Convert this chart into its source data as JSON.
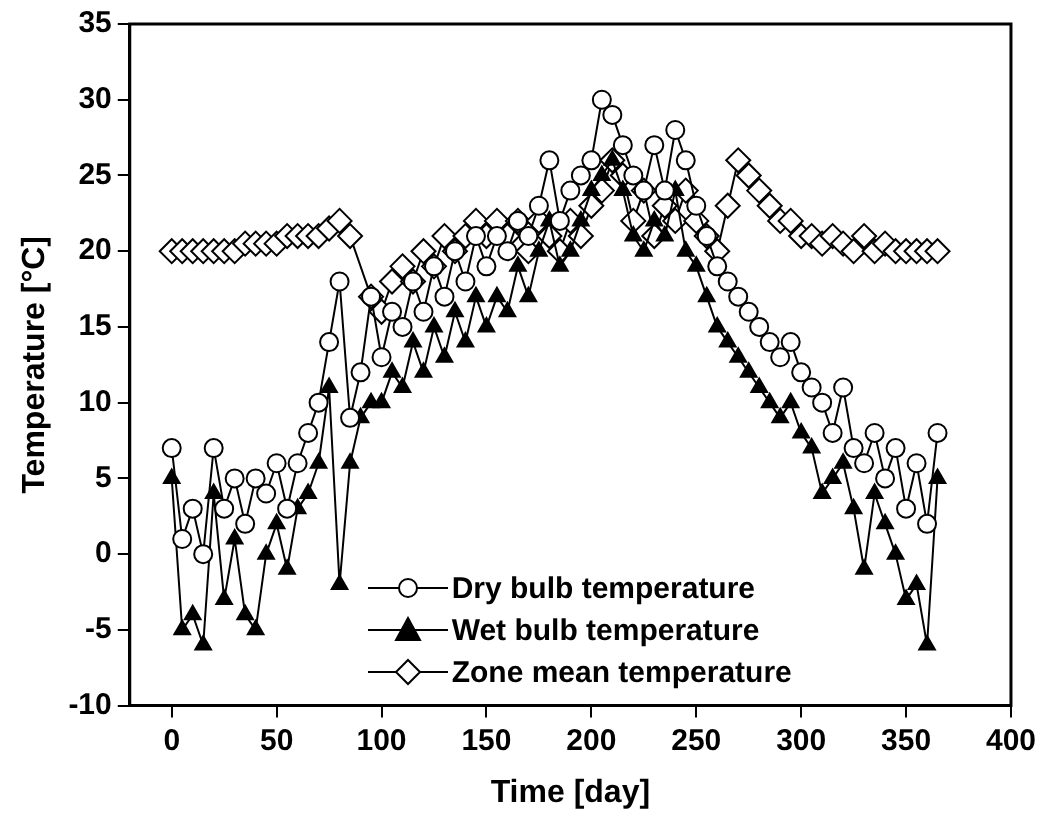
{
  "chart_data": {
    "type": "line",
    "xlabel": "Time [day]",
    "ylabel": "Temperature [°C]",
    "xlim": [
      -20,
      400
    ],
    "xticks": [
      0,
      50,
      100,
      150,
      200,
      250,
      300,
      350,
      400
    ],
    "ylim": [
      -10,
      35
    ],
    "yticks": [
      -10,
      -5,
      0,
      5,
      10,
      15,
      20,
      25,
      30,
      35
    ],
    "grid": false,
    "legend": "bottom",
    "line_style": "solid",
    "series": [
      {
        "name": "Dry bulb temperature",
        "color": "#000000",
        "marker": "circle",
        "x": [
          0,
          5,
          10,
          15,
          20,
          25,
          30,
          35,
          40,
          45,
          50,
          55,
          60,
          65,
          70,
          75,
          80,
          85,
          90,
          95,
          100,
          105,
          110,
          115,
          120,
          125,
          130,
          135,
          140,
          145,
          150,
          155,
          160,
          165,
          170,
          175,
          180,
          185,
          190,
          195,
          200,
          205,
          210,
          215,
          220,
          225,
          230,
          235,
          240,
          245,
          250,
          255,
          260,
          265,
          270,
          275,
          280,
          285,
          290,
          295,
          300,
          305,
          310,
          315,
          320,
          325,
          330,
          335,
          340,
          345,
          350,
          355,
          360,
          365
        ],
        "values": [
          7,
          1,
          3,
          0,
          7,
          3,
          5,
          2,
          5,
          4,
          6,
          3,
          6,
          8,
          10,
          14,
          18,
          9,
          12,
          17,
          13,
          16,
          15,
          18,
          16,
          19,
          17,
          20,
          18,
          21,
          19,
          21,
          20,
          22,
          21,
          23,
          26,
          22,
          24,
          25,
          26,
          30,
          29,
          27,
          25,
          24,
          27,
          24,
          28,
          26,
          23,
          21,
          19,
          18,
          17,
          16,
          15,
          14,
          13,
          14,
          12,
          11,
          10,
          8,
          11,
          7,
          6,
          8,
          5,
          7,
          3,
          6,
          2,
          8
        ]
      },
      {
        "name": "Wet bulb temperature",
        "color": "#000000",
        "marker": "triangle",
        "x": [
          0,
          5,
          10,
          15,
          20,
          25,
          30,
          35,
          40,
          45,
          50,
          55,
          60,
          65,
          70,
          75,
          80,
          85,
          90,
          95,
          100,
          105,
          110,
          115,
          120,
          125,
          130,
          135,
          140,
          145,
          150,
          155,
          160,
          165,
          170,
          175,
          180,
          185,
          190,
          195,
          200,
          205,
          210,
          215,
          220,
          225,
          230,
          235,
          240,
          245,
          250,
          255,
          260,
          265,
          270,
          275,
          280,
          285,
          290,
          295,
          300,
          305,
          310,
          315,
          320,
          325,
          330,
          335,
          340,
          345,
          350,
          355,
          360,
          365
        ],
        "values": [
          5,
          -5,
          -4,
          -6,
          4,
          -3,
          1,
          -4,
          -5,
          0,
          2,
          -1,
          3,
          4,
          6,
          11,
          -2,
          6,
          9,
          10,
          10,
          12,
          11,
          14,
          12,
          15,
          13,
          16,
          14,
          17,
          15,
          17,
          16,
          19,
          17,
          20,
          22,
          19,
          20,
          22,
          24,
          25,
          26,
          24,
          21,
          20,
          22,
          21,
          24,
          20,
          19,
          17,
          15,
          14,
          13,
          12,
          11,
          10,
          9,
          10,
          8,
          7,
          4,
          5,
          6,
          3,
          -1,
          4,
          2,
          0,
          -3,
          -2,
          -6,
          5
        ]
      },
      {
        "name": "Zone mean temperature",
        "color": "#000000",
        "marker": "diamond",
        "x": [
          0,
          5,
          10,
          15,
          20,
          25,
          30,
          35,
          40,
          45,
          50,
          55,
          60,
          65,
          70,
          75,
          80,
          85,
          95,
          100,
          105,
          110,
          115,
          120,
          125,
          130,
          135,
          140,
          145,
          150,
          155,
          160,
          165,
          170,
          175,
          180,
          185,
          190,
          195,
          200,
          205,
          210,
          215,
          220,
          225,
          230,
          235,
          240,
          245,
          250,
          255,
          260,
          265,
          270,
          275,
          280,
          285,
          290,
          295,
          300,
          305,
          310,
          315,
          320,
          325,
          330,
          335,
          340,
          345,
          350,
          355,
          360,
          365
        ],
        "values": [
          20,
          20,
          20,
          20,
          20,
          20,
          20,
          20.5,
          20.5,
          20.5,
          20.5,
          21,
          21,
          21,
          21,
          21.5,
          22,
          21,
          17,
          16,
          18,
          19,
          18,
          20,
          19,
          21,
          20,
          21,
          22,
          21,
          22,
          21,
          22,
          20,
          22,
          21,
          20,
          22,
          21,
          23,
          24,
          26,
          25,
          22,
          24,
          21,
          23,
          22,
          24,
          22,
          21,
          20,
          23,
          26,
          25,
          24,
          23,
          22,
          22,
          21,
          21,
          20.5,
          21,
          20.5,
          20,
          21,
          20,
          20.5,
          20,
          20,
          20,
          20,
          20
        ]
      }
    ]
  }
}
